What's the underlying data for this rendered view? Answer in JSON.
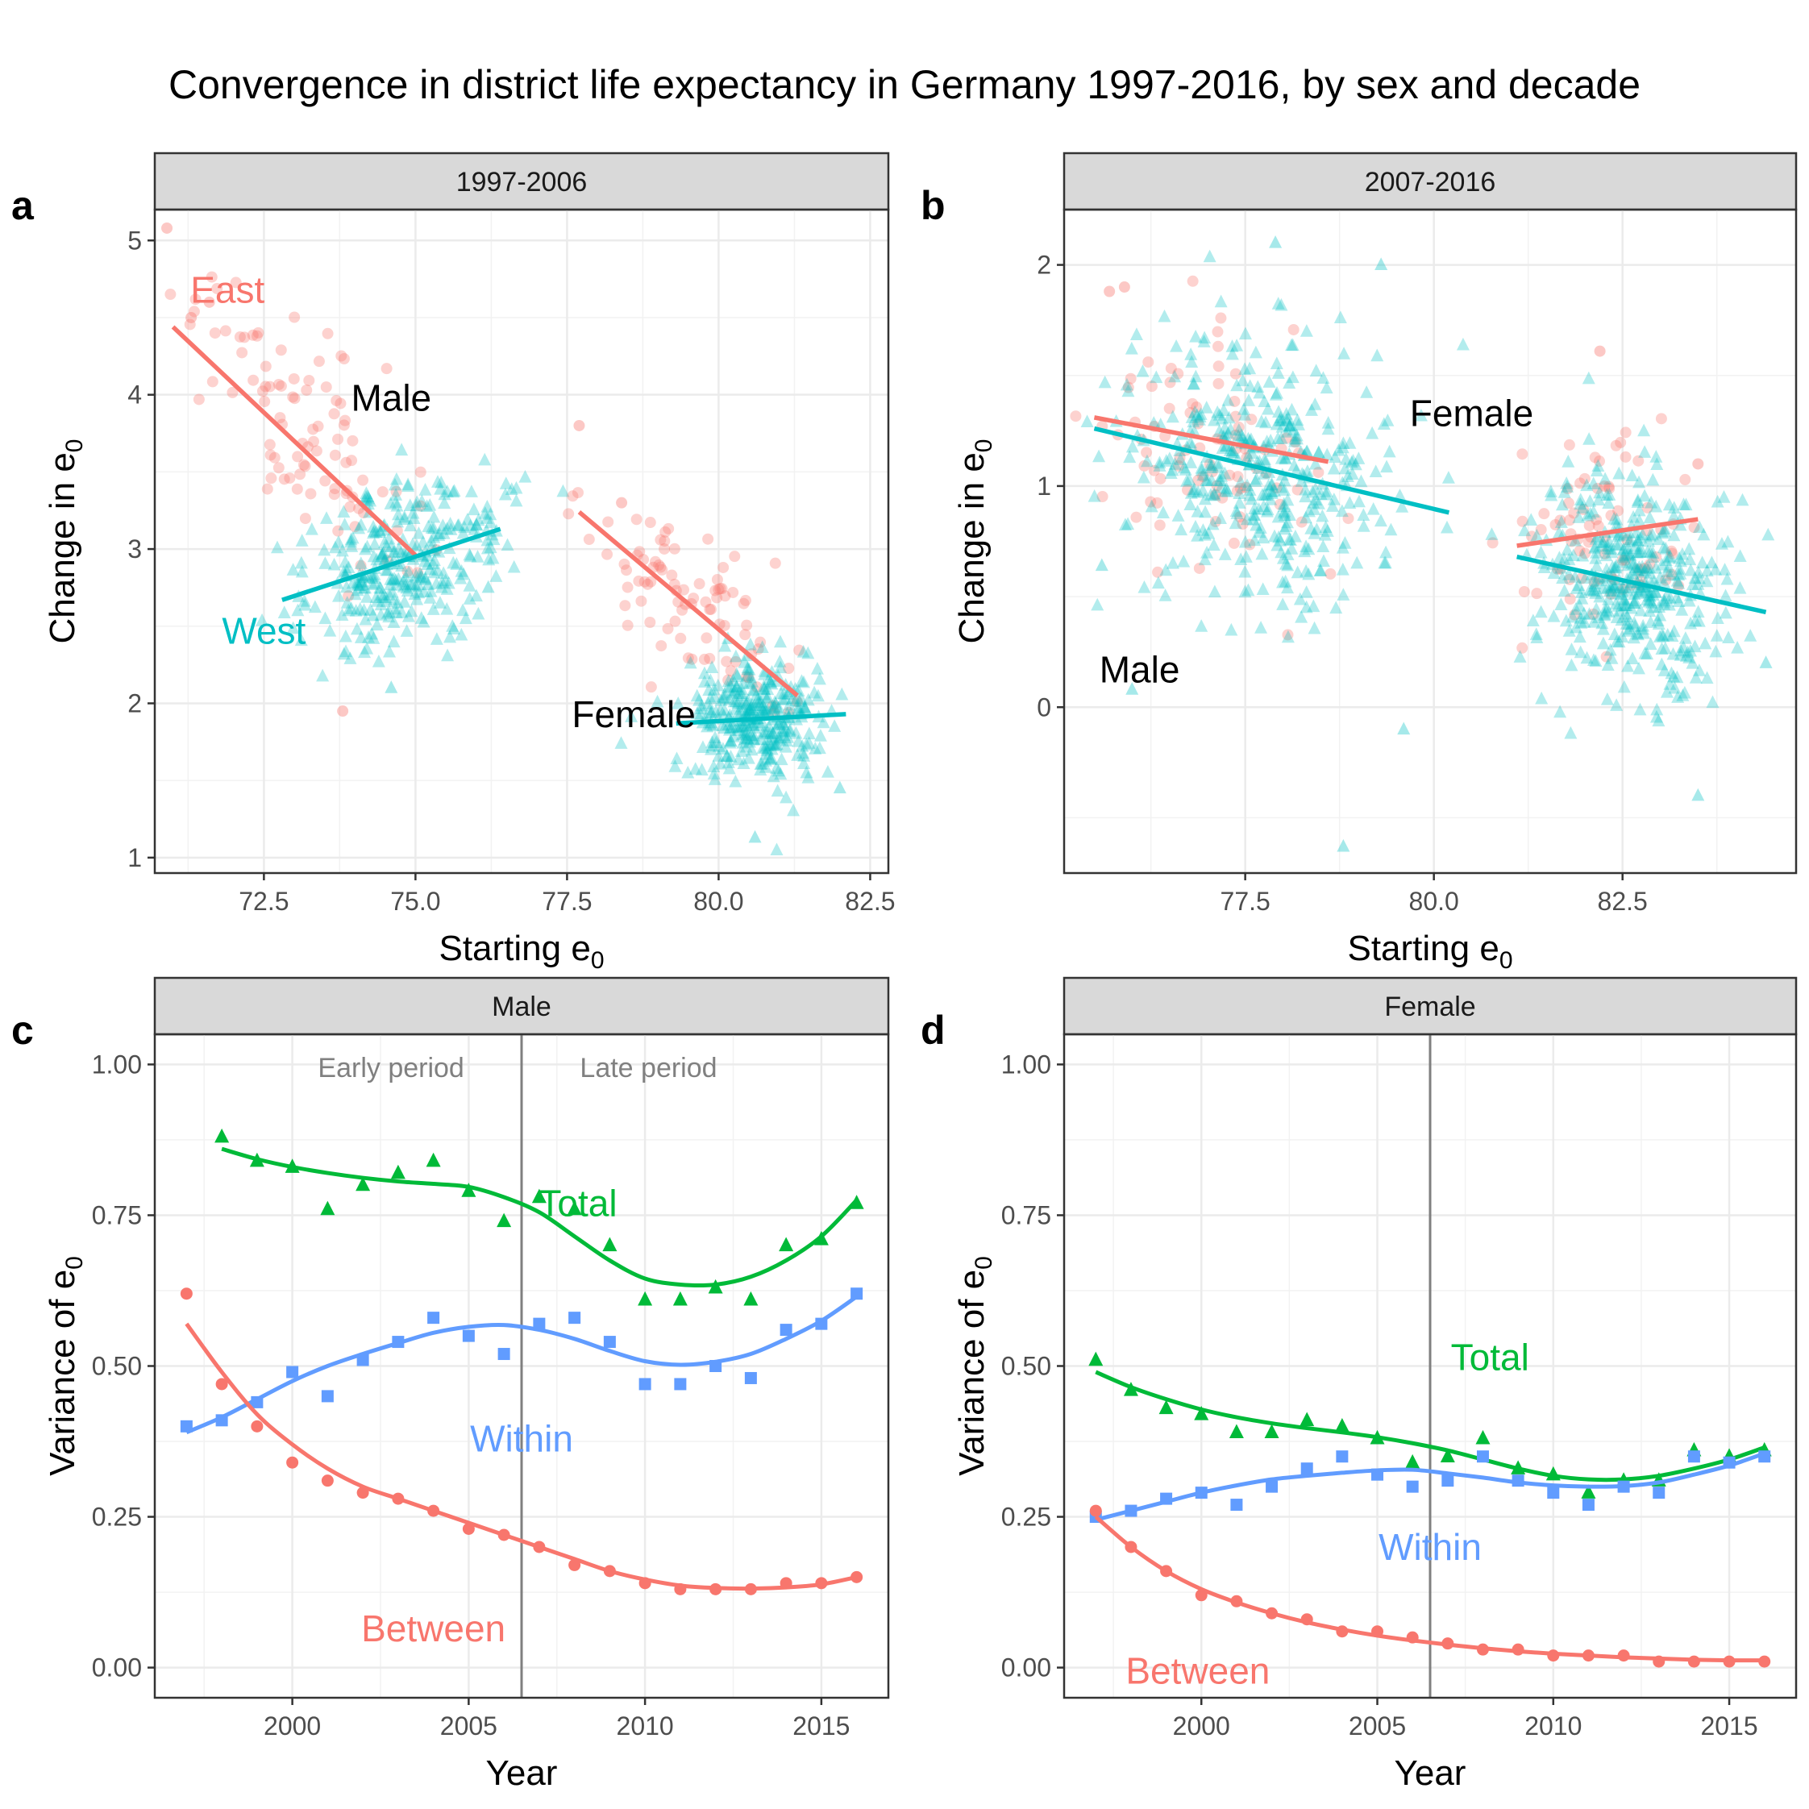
{
  "title": "Convergence in district life expectancy in Germany 1997-2016, by sex and decade",
  "colors": {
    "east": "#F8766D",
    "west": "#00BFC4",
    "between": "#F8766D",
    "within": "#619CFF",
    "total": "#00BA38"
  },
  "chart_data": [
    {
      "tag": "a",
      "strip": "1997-2006",
      "type": "scatter",
      "xlabel": "Starting e",
      "xlabel_sub": "0",
      "ylabel": "Change in e",
      "ylabel_sub": "0",
      "xlim": [
        70.7,
        82.8
      ],
      "ylim": [
        0.9,
        5.2
      ],
      "xticks": [
        72.5,
        75.0,
        77.5,
        80.0,
        82.5
      ],
      "xtick_labels": [
        "72.5",
        "75.0",
        "77.5",
        "80.0",
        "82.5"
      ],
      "yticks": [
        1,
        2,
        3,
        4,
        5
      ],
      "ytick_labels": [
        "1",
        "2",
        "3",
        "4",
        "5"
      ],
      "annotations": [
        {
          "text": "East",
          "x": 71.9,
          "y": 4.68,
          "color": "east"
        },
        {
          "text": "Male",
          "x": 74.6,
          "y": 3.98,
          "color": "black"
        },
        {
          "text": "West",
          "x": 72.5,
          "y": 2.47,
          "color": "west"
        },
        {
          "text": "Female",
          "x": 78.6,
          "y": 1.93,
          "color": "black"
        }
      ],
      "fit_lines": [
        {
          "series": "East",
          "sex": "Male",
          "x": [
            71.0,
            75.0
          ],
          "y": [
            4.44,
            2.96
          ]
        },
        {
          "series": "West",
          "sex": "Male",
          "x": [
            72.8,
            76.4
          ],
          "y": [
            2.67,
            3.13
          ]
        },
        {
          "series": "East",
          "sex": "Female",
          "x": [
            77.7,
            81.3
          ],
          "y": [
            3.24,
            2.05
          ]
        },
        {
          "series": "West",
          "sex": "Female",
          "x": [
            79.3,
            82.1
          ],
          "y": [
            1.87,
            1.93
          ]
        }
      ],
      "clusters": [
        {
          "series": "East",
          "n": 95,
          "sx": 0.9,
          "sy": 0.33,
          "center": [
            73.0,
            3.85
          ],
          "slope": -0.37
        },
        {
          "series": "West",
          "n": 330,
          "sx": 0.85,
          "sy": 0.25,
          "center": [
            74.8,
            2.9
          ],
          "slope": 0.12
        },
        {
          "series": "East",
          "n": 90,
          "sx": 0.8,
          "sy": 0.26,
          "center": [
            79.6,
            2.65
          ],
          "slope": -0.33
        },
        {
          "series": "West",
          "n": 330,
          "sx": 0.55,
          "sy": 0.2,
          "center": [
            80.6,
            1.9
          ],
          "slope": 0.02
        }
      ],
      "extra_points": [
        {
          "series": "East",
          "x": 70.9,
          "y": 5.08
        },
        {
          "series": "East",
          "x": 71.3,
          "y": 4.5
        },
        {
          "series": "East",
          "x": 71.6,
          "y": 4.6
        },
        {
          "series": "East",
          "x": 73.8,
          "y": 1.95
        },
        {
          "series": "East",
          "x": 77.7,
          "y": 3.8
        },
        {
          "series": "East",
          "x": 78.4,
          "y": 3.3
        },
        {
          "series": "West",
          "x": 74.6,
          "y": 2.1
        },
        {
          "series": "West",
          "x": 76.2,
          "y": 2.75
        },
        {
          "series": "West",
          "x": 80.6,
          "y": 1.13
        },
        {
          "series": "West",
          "x": 82.0,
          "y": 1.45
        }
      ]
    },
    {
      "tag": "b",
      "strip": "2007-2016",
      "type": "scatter",
      "xlabel": "Starting e",
      "xlabel_sub": "0",
      "ylabel": "Change in e",
      "ylabel_sub": "0",
      "xlim": [
        75.1,
        84.8
      ],
      "ylim": [
        -0.75,
        2.25
      ],
      "xticks": [
        77.5,
        80.0,
        82.5
      ],
      "xtick_labels": [
        "77.5",
        "80.0",
        "82.5"
      ],
      "yticks": [
        0,
        1,
        2
      ],
      "ytick_labels": [
        "0",
        "1",
        "2"
      ],
      "annotations": [
        {
          "text": "Female",
          "x": 80.5,
          "y": 1.33,
          "color": "black"
        },
        {
          "text": "Male",
          "x": 76.1,
          "y": 0.17,
          "color": "black"
        }
      ],
      "fit_lines": [
        {
          "series": "East",
          "sex": "Male",
          "x": [
            75.5,
            78.6
          ],
          "y": [
            1.31,
            1.11
          ]
        },
        {
          "series": "West",
          "sex": "Male",
          "x": [
            75.5,
            80.2
          ],
          "y": [
            1.26,
            0.88
          ]
        },
        {
          "series": "East",
          "sex": "Female",
          "x": [
            81.1,
            83.5
          ],
          "y": [
            0.73,
            0.85
          ]
        },
        {
          "series": "West",
          "sex": "Female",
          "x": [
            81.1,
            84.4
          ],
          "y": [
            0.68,
            0.43
          ]
        }
      ],
      "clusters": [
        {
          "series": "East",
          "n": 85,
          "sx": 0.75,
          "sy": 0.27,
          "center": [
            76.9,
            1.12
          ],
          "slope": -0.05
        },
        {
          "series": "West",
          "n": 420,
          "sx": 0.85,
          "sy": 0.28,
          "center": [
            77.6,
            1.08
          ],
          "slope": -0.08
        },
        {
          "series": "East",
          "n": 80,
          "sx": 0.55,
          "sy": 0.22,
          "center": [
            82.2,
            0.78
          ],
          "slope": 0.05
        },
        {
          "series": "West",
          "n": 420,
          "sx": 0.65,
          "sy": 0.26,
          "center": [
            82.6,
            0.58
          ],
          "slope": -0.08
        }
      ],
      "extra_points": [
        {
          "series": "East",
          "x": 75.7,
          "y": 1.88
        },
        {
          "series": "East",
          "x": 75.9,
          "y": 1.9
        },
        {
          "series": "East",
          "x": 82.2,
          "y": 1.61
        },
        {
          "series": "East",
          "x": 83.5,
          "y": 1.1
        },
        {
          "series": "West",
          "x": 77.9,
          "y": 2.1
        },
        {
          "series": "West",
          "x": 79.3,
          "y": 2.0
        },
        {
          "series": "West",
          "x": 78.8,
          "y": -0.63
        },
        {
          "series": "West",
          "x": 79.6,
          "y": -0.1
        },
        {
          "series": "West",
          "x": 83.5,
          "y": -0.4
        },
        {
          "series": "West",
          "x": 84.4,
          "y": 0.2
        },
        {
          "series": "West",
          "x": 76.0,
          "y": 0.08
        },
        {
          "series": "West",
          "x": 75.6,
          "y": 0.64
        }
      ]
    },
    {
      "tag": "c",
      "strip": "Male",
      "type": "line",
      "xlabel": "Year",
      "ylabel": "Variance of e",
      "ylabel_sub": "0",
      "xlim": [
        1996.1,
        2016.9
      ],
      "ylim": [
        -0.05,
        1.05
      ],
      "xticks": [
        2000,
        2005,
        2010,
        2015
      ],
      "xtick_labels": [
        "2000",
        "2005",
        "2010",
        "2015"
      ],
      "yticks": [
        0,
        0.25,
        0.5,
        0.75,
        1.0
      ],
      "ytick_labels": [
        "0.00",
        "0.25",
        "0.50",
        "0.75",
        "1.00"
      ],
      "vline": 2006.5,
      "period_labels": [
        {
          "text": "Early period",
          "x": 2002.8,
          "y": 0.995
        },
        {
          "text": "Late period",
          "x": 2010.1,
          "y": 0.995
        }
      ],
      "x": [
        1997,
        1998,
        1999,
        2000,
        2001,
        2002,
        2003,
        2004,
        2005,
        2006,
        2007,
        2008,
        2009,
        2010,
        2011,
        2012,
        2013,
        2014,
        2015,
        2016
      ],
      "series": [
        {
          "name": "Total",
          "color": "total",
          "marker": "triangle",
          "values": [
            null,
            0.88,
            0.84,
            0.83,
            0.76,
            0.8,
            0.82,
            0.84,
            0.79,
            0.74,
            0.78,
            0.76,
            0.7,
            0.61,
            0.61,
            0.63,
            0.61,
            0.7,
            0.71,
            0.77
          ],
          "smooth": [
            null,
            0.86,
            0.843,
            0.83,
            0.82,
            0.812,
            0.806,
            0.802,
            0.797,
            0.78,
            0.755,
            0.715,
            0.675,
            0.645,
            0.635,
            0.635,
            0.648,
            0.675,
            0.715,
            0.775
          ]
        },
        {
          "name": "Within",
          "color": "within",
          "marker": "square",
          "values": [
            0.4,
            0.41,
            0.44,
            0.49,
            0.45,
            0.51,
            0.54,
            0.58,
            0.55,
            0.52,
            0.57,
            0.58,
            0.54,
            0.47,
            0.47,
            0.5,
            0.48,
            0.56,
            0.57,
            0.62
          ],
          "smooth": [
            0.39,
            0.415,
            0.445,
            0.475,
            0.5,
            0.52,
            0.538,
            0.555,
            0.565,
            0.568,
            0.56,
            0.545,
            0.525,
            0.508,
            0.502,
            0.507,
            0.52,
            0.545,
            0.575,
            0.615
          ]
        },
        {
          "name": "Between",
          "color": "between",
          "marker": "circle",
          "values": [
            0.62,
            0.47,
            0.4,
            0.34,
            0.31,
            0.29,
            0.28,
            0.26,
            0.23,
            0.22,
            0.2,
            0.17,
            0.16,
            0.14,
            0.13,
            0.13,
            0.13,
            0.14,
            0.14,
            0.15
          ],
          "smooth": [
            0.57,
            0.49,
            0.42,
            0.37,
            0.33,
            0.3,
            0.28,
            0.26,
            0.24,
            0.22,
            0.2,
            0.18,
            0.16,
            0.146,
            0.136,
            0.132,
            0.131,
            0.133,
            0.138,
            0.15
          ]
        }
      ],
      "annotations": [
        {
          "text": "Total",
          "x": 2008.1,
          "y": 0.77,
          "color": "total"
        },
        {
          "text": "Within",
          "x": 2006.5,
          "y": 0.38,
          "color": "within"
        },
        {
          "text": "Between",
          "x": 2004.0,
          "y": 0.065,
          "color": "between"
        }
      ]
    },
    {
      "tag": "d",
      "strip": "Female",
      "type": "line",
      "xlabel": "Year",
      "ylabel": "Variance of e",
      "ylabel_sub": "0",
      "xlim": [
        1996.1,
        2016.9
      ],
      "ylim": [
        -0.05,
        1.05
      ],
      "xticks": [
        2000,
        2005,
        2010,
        2015
      ],
      "xtick_labels": [
        "2000",
        "2005",
        "2010",
        "2015"
      ],
      "yticks": [
        0,
        0.25,
        0.5,
        0.75,
        1.0
      ],
      "ytick_labels": [
        "0.00",
        "0.25",
        "0.50",
        "0.75",
        "1.00"
      ],
      "vline": 2006.5,
      "x": [
        1997,
        1998,
        1999,
        2000,
        2001,
        2002,
        2003,
        2004,
        2005,
        2006,
        2007,
        2008,
        2009,
        2010,
        2011,
        2012,
        2013,
        2014,
        2015,
        2016
      ],
      "series": [
        {
          "name": "Total",
          "color": "total",
          "marker": "triangle",
          "values": [
            0.51,
            0.46,
            0.43,
            0.42,
            0.39,
            0.39,
            0.41,
            0.4,
            0.38,
            0.34,
            0.35,
            0.38,
            0.33,
            0.32,
            0.29,
            0.31,
            0.31,
            0.36,
            0.35,
            0.36
          ],
          "smooth": [
            0.49,
            0.465,
            0.445,
            0.428,
            0.415,
            0.405,
            0.397,
            0.39,
            0.382,
            0.372,
            0.36,
            0.345,
            0.33,
            0.318,
            0.312,
            0.312,
            0.318,
            0.33,
            0.345,
            0.365
          ]
        },
        {
          "name": "Within",
          "color": "within",
          "marker": "square",
          "values": [
            0.25,
            0.26,
            0.28,
            0.29,
            0.27,
            0.3,
            0.33,
            0.35,
            0.32,
            0.3,
            0.31,
            0.35,
            0.31,
            0.29,
            0.27,
            0.3,
            0.29,
            0.35,
            0.34,
            0.35
          ],
          "smooth": [
            0.245,
            0.26,
            0.275,
            0.29,
            0.302,
            0.312,
            0.318,
            0.323,
            0.327,
            0.328,
            0.322,
            0.315,
            0.307,
            0.302,
            0.3,
            0.301,
            0.307,
            0.32,
            0.335,
            0.355
          ]
        },
        {
          "name": "Between",
          "color": "between",
          "marker": "circle",
          "values": [
            0.26,
            0.2,
            0.16,
            0.12,
            0.11,
            0.09,
            0.08,
            0.06,
            0.06,
            0.05,
            0.04,
            0.03,
            0.03,
            0.02,
            0.02,
            0.02,
            0.01,
            0.01,
            0.01,
            0.01
          ],
          "smooth": [
            0.25,
            0.2,
            0.16,
            0.13,
            0.108,
            0.09,
            0.075,
            0.063,
            0.053,
            0.045,
            0.038,
            0.032,
            0.027,
            0.023,
            0.02,
            0.017,
            0.015,
            0.013,
            0.012,
            0.012
          ]
        }
      ],
      "annotations": [
        {
          "text": "Total",
          "x": 2008.2,
          "y": 0.515,
          "color": "total"
        },
        {
          "text": "Within",
          "x": 2006.5,
          "y": 0.2,
          "color": "within"
        },
        {
          "text": "Between",
          "x": 1999.9,
          "y": -0.005,
          "color": "between"
        }
      ]
    }
  ]
}
